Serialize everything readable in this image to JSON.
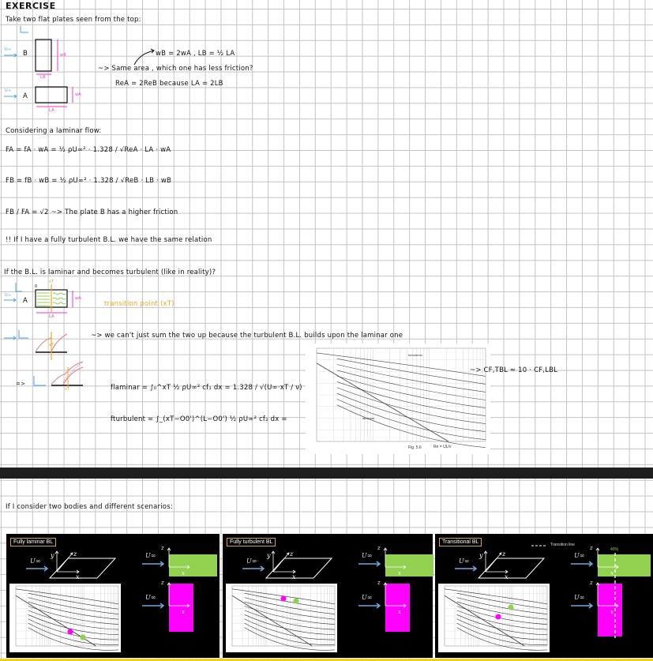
{
  "title": "EXERCISE",
  "intro": "Take two flat plates seen from the top:",
  "plates": {
    "flow_label": "U∞",
    "plate_b": "B",
    "plate_a": "A",
    "wb": "wB",
    "lb": "LB",
    "wa": "wA",
    "la": "LA"
  },
  "relation": "wB = 2wA ,  LB = ½ LA",
  "question": "~> Same area , which one has less friction?",
  "reynolds": "ReA = 2ReB   because   LA = 2LB",
  "laminar_heading": "Considering a laminar flow:",
  "fa_formula": "FA = fA · wA = ½ ρU∞² · 1.328 / √ReA · LA · wA",
  "fb_formula": "FB = fB · wB = ½ ρU∞² · 1.328 / √ReB · LB · wB",
  "ratio": "FB / FA = √2  ~> The plate B has a higher friction",
  "turbulent_note": "!! If I have a fully turbulent B.L. we have the same relation",
  "transition_question": "If the B.L. is laminar and becomes turbulent (like in reality)?",
  "transition": {
    "xt": "xT",
    "zero": "0",
    "plate": "A",
    "flow_label": "U∞",
    "wa": "wA",
    "la": "LA",
    "point_label": "transition point (xT)"
  },
  "cant_sum": "~> we can't just sum the two up because the turbulent B.L. builds upon the laminar one",
  "f_laminar": "flaminar = ∫₀^xT ½ ρU∞² cf₁ dx = 1.328 / √(U∞·xT / ν)",
  "f_turbulent": "fturbulent = ∫_(xT−O0')^(L−O0') ½ ρU∞² cf₂ dx =",
  "implies": "=>",
  "cf_relation": "~> CF,TBL ≈ 10 · CF,LBL",
  "figure": {
    "caption": "Fig. 5.6",
    "turbulent_label": "turbolento",
    "laminar_label": "laminare",
    "xlabel": "Re = UL/ν",
    "ylabel": "cf"
  },
  "scenarios_heading": "If I consider two bodies and different scenarios:",
  "panels": [
    {
      "label": "Fully laminar BL",
      "flow": "U∞",
      "y": "y",
      "z": "z",
      "x": "x"
    },
    {
      "label": "Fully turbulent BL",
      "flow": "U∞",
      "y": "y",
      "z": "z",
      "x": "x"
    },
    {
      "label": "Transitional BL",
      "flow": "U∞",
      "y": "y",
      "z": "z",
      "x": "x",
      "legend": "Transition line",
      "green_pct": "40%",
      "pink_pct": "80%"
    }
  ],
  "colors": {
    "green": "#92d050",
    "magenta": "#ff00ff",
    "orange": "#f5a623",
    "pink": "#ff2fd0",
    "blue": "#4aa3e8",
    "label_border": "#d9a41a",
    "separator": "#f5cc1f"
  }
}
